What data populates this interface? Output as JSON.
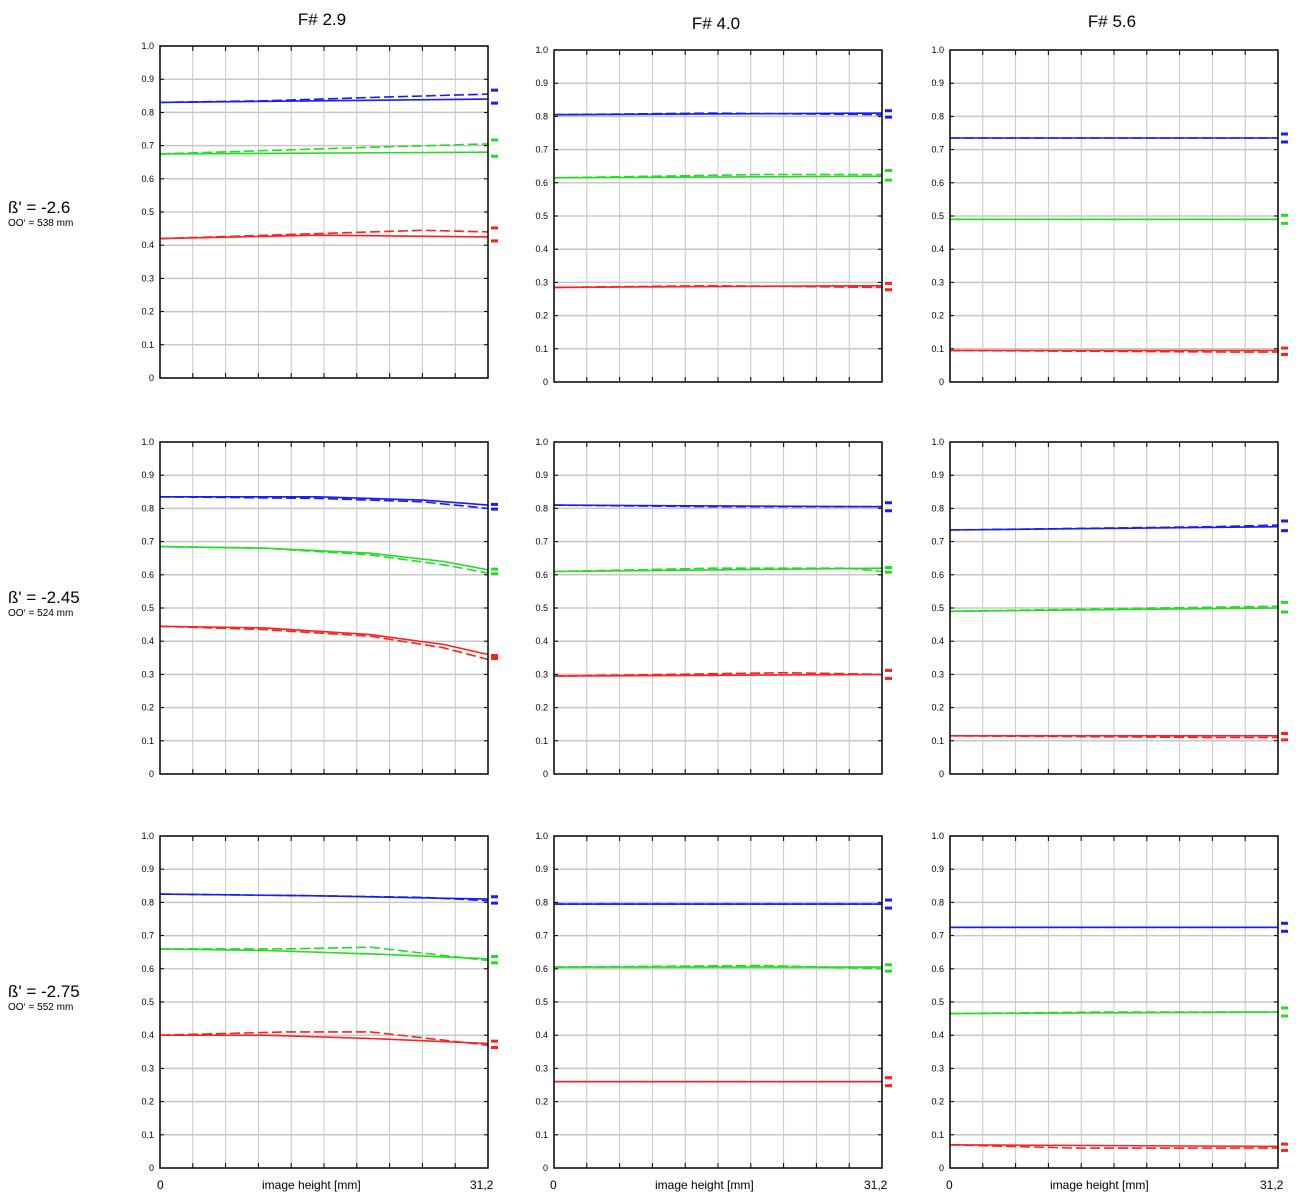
{
  "column_titles": [
    "F# 2.9",
    "F# 4.0",
    "F# 5.6"
  ],
  "rows": [
    {
      "beta": "ß' = -2.6",
      "oo": "OO‘ = 538 mm"
    },
    {
      "beta": "ß' = -2.45",
      "oo": "OO‘ = 524 mm"
    },
    {
      "beta": "ß' = -2.75",
      "oo": "OO‘ =  552 mm"
    }
  ],
  "x_axis": {
    "start_label": "0",
    "title": "image height [mm]",
    "end_label": "31,2"
  },
  "colors": {
    "blue": "#1a1aff",
    "green": "#22dd22",
    "red": "#ff2020",
    "grid": "#c8c8c8"
  },
  "chart_data": [
    {
      "type": "line",
      "panel": "F# 2.9 / ß' = -2.6",
      "x": [
        0,
        31.2
      ],
      "ylim": [
        0,
        1.0
      ],
      "grid": true,
      "yticks": [
        "0",
        "0.1",
        "0.2",
        "0.3",
        "0.4",
        "0.5",
        "0.6",
        "0.7",
        "0.8",
        "0.9",
        "1.0"
      ],
      "series": [
        {
          "color": "blue",
          "style": "solid",
          "x": [
            0,
            31.2
          ],
          "y": [
            0.83,
            0.84
          ]
        },
        {
          "color": "blue",
          "style": "dashed",
          "x": [
            0,
            10,
            20,
            31.2
          ],
          "y": [
            0.83,
            0.835,
            0.845,
            0.855
          ]
        },
        {
          "color": "green",
          "style": "solid",
          "x": [
            0,
            31.2
          ],
          "y": [
            0.675,
            0.68
          ]
        },
        {
          "color": "green",
          "style": "dashed",
          "x": [
            0,
            10,
            20,
            31.2
          ],
          "y": [
            0.675,
            0.685,
            0.695,
            0.705
          ]
        },
        {
          "color": "red",
          "style": "solid",
          "x": [
            0,
            15,
            31.2
          ],
          "y": [
            0.42,
            0.43,
            0.425
          ]
        },
        {
          "color": "red",
          "style": "dashed",
          "x": [
            0,
            15,
            25,
            31.2
          ],
          "y": [
            0.42,
            0.435,
            0.445,
            0.44
          ]
        }
      ]
    },
    {
      "type": "line",
      "panel": "F# 4.0 / ß' = -2.6",
      "x": [
        0,
        31.2
      ],
      "ylim": [
        0,
        1.0
      ],
      "grid": true,
      "yticks": [
        "0",
        "0.1",
        "0.2",
        "0.3",
        "0.4",
        "0.5",
        "0.6",
        "0.7",
        "0.8",
        "0.9",
        "1.0"
      ],
      "series": [
        {
          "color": "blue",
          "style": "solid",
          "x": [
            0,
            31.2
          ],
          "y": [
            0.805,
            0.81
          ]
        },
        {
          "color": "blue",
          "style": "dashed",
          "x": [
            0,
            15,
            31.2
          ],
          "y": [
            0.805,
            0.81,
            0.805
          ]
        },
        {
          "color": "green",
          "style": "solid",
          "x": [
            0,
            31.2
          ],
          "y": [
            0.615,
            0.62
          ]
        },
        {
          "color": "green",
          "style": "dashed",
          "x": [
            0,
            20,
            31.2
          ],
          "y": [
            0.615,
            0.625,
            0.625
          ]
        },
        {
          "color": "red",
          "style": "solid",
          "x": [
            0,
            31.2
          ],
          "y": [
            0.285,
            0.29
          ]
        },
        {
          "color": "red",
          "style": "dashed",
          "x": [
            0,
            15,
            31.2
          ],
          "y": [
            0.285,
            0.29,
            0.285
          ]
        }
      ]
    },
    {
      "type": "line",
      "panel": "F# 5.6 / ß' = -2.6",
      "x": [
        0,
        31.2
      ],
      "ylim": [
        0,
        1.0
      ],
      "grid": true,
      "yticks": [
        "0",
        "0.1",
        "0.2",
        "0.3",
        "0.4",
        "0.5",
        "0.6",
        "0.7",
        "0.8",
        "0.9",
        "1.0"
      ],
      "series": [
        {
          "color": "blue",
          "style": "solid",
          "x": [
            0,
            31.2
          ],
          "y": [
            0.735,
            0.735
          ]
        },
        {
          "color": "blue",
          "style": "dashed",
          "x": [
            0,
            31.2
          ],
          "y": [
            0.735,
            0.735
          ]
        },
        {
          "color": "green",
          "style": "solid",
          "x": [
            0,
            31.2
          ],
          "y": [
            0.49,
            0.49
          ]
        },
        {
          "color": "green",
          "style": "dashed",
          "x": [
            0,
            31.2
          ],
          "y": [
            0.49,
            0.49
          ]
        },
        {
          "color": "red",
          "style": "solid",
          "x": [
            0,
            31.2
          ],
          "y": [
            0.095,
            0.095
          ]
        },
        {
          "color": "red",
          "style": "dashed",
          "x": [
            0,
            28,
            31.2
          ],
          "y": [
            0.095,
            0.09,
            0.09
          ]
        }
      ]
    },
    {
      "type": "line",
      "panel": "F# 2.9 / ß' = -2.45",
      "x": [
        0,
        31.2
      ],
      "ylim": [
        0,
        1.0
      ],
      "grid": true,
      "yticks": [
        "0",
        "0.1",
        "0.2",
        "0.3",
        "0.4",
        "0.5",
        "0.6",
        "0.7",
        "0.8",
        "0.9",
        "1.0"
      ],
      "series": [
        {
          "color": "blue",
          "style": "solid",
          "x": [
            0,
            15,
            25,
            31.2
          ],
          "y": [
            0.835,
            0.835,
            0.825,
            0.81
          ]
        },
        {
          "color": "blue",
          "style": "dashed",
          "x": [
            0,
            15,
            25,
            31.2
          ],
          "y": [
            0.835,
            0.83,
            0.82,
            0.8
          ]
        },
        {
          "color": "green",
          "style": "solid",
          "x": [
            0,
            10,
            20,
            27,
            31.2
          ],
          "y": [
            0.685,
            0.68,
            0.665,
            0.64,
            0.615
          ]
        },
        {
          "color": "green",
          "style": "dashed",
          "x": [
            0,
            10,
            20,
            27,
            31.2
          ],
          "y": [
            0.685,
            0.68,
            0.66,
            0.63,
            0.605
          ]
        },
        {
          "color": "red",
          "style": "solid",
          "x": [
            0,
            10,
            20,
            27,
            31.2
          ],
          "y": [
            0.445,
            0.44,
            0.42,
            0.39,
            0.36
          ]
        },
        {
          "color": "red",
          "style": "dashed",
          "x": [
            0,
            10,
            20,
            27,
            31.2
          ],
          "y": [
            0.445,
            0.435,
            0.415,
            0.38,
            0.345
          ]
        }
      ]
    },
    {
      "type": "line",
      "panel": "F# 4.0 / ß' = -2.45",
      "x": [
        0,
        31.2
      ],
      "ylim": [
        0,
        1.0
      ],
      "grid": true,
      "yticks": [
        "0",
        "0.1",
        "0.2",
        "0.3",
        "0.4",
        "0.5",
        "0.6",
        "0.7",
        "0.8",
        "0.9",
        "1.0"
      ],
      "series": [
        {
          "color": "blue",
          "style": "solid",
          "x": [
            0,
            31.2
          ],
          "y": [
            0.81,
            0.805
          ]
        },
        {
          "color": "blue",
          "style": "dashed",
          "x": [
            0,
            15,
            31.2
          ],
          "y": [
            0.81,
            0.805,
            0.805
          ]
        },
        {
          "color": "green",
          "style": "solid",
          "x": [
            0,
            31.2
          ],
          "y": [
            0.61,
            0.62
          ]
        },
        {
          "color": "green",
          "style": "dashed",
          "x": [
            0,
            15,
            28,
            31.2
          ],
          "y": [
            0.61,
            0.62,
            0.62,
            0.61
          ]
        },
        {
          "color": "red",
          "style": "solid",
          "x": [
            0,
            31.2
          ],
          "y": [
            0.295,
            0.3
          ]
        },
        {
          "color": "red",
          "style": "dashed",
          "x": [
            0,
            22,
            31.2
          ],
          "y": [
            0.295,
            0.305,
            0.3
          ]
        }
      ]
    },
    {
      "type": "line",
      "panel": "F# 5.6 / ß' = -2.45",
      "x": [
        0,
        31.2
      ],
      "ylim": [
        0,
        1.0
      ],
      "grid": true,
      "yticks": [
        "0",
        "0.1",
        "0.2",
        "0.3",
        "0.4",
        "0.5",
        "0.6",
        "0.7",
        "0.8",
        "0.9",
        "1.0"
      ],
      "series": [
        {
          "color": "blue",
          "style": "solid",
          "x": [
            0,
            31.2
          ],
          "y": [
            0.735,
            0.745
          ]
        },
        {
          "color": "blue",
          "style": "dashed",
          "x": [
            0,
            25,
            31.2
          ],
          "y": [
            0.735,
            0.745,
            0.75
          ]
        },
        {
          "color": "green",
          "style": "solid",
          "x": [
            0,
            31.2
          ],
          "y": [
            0.49,
            0.5
          ]
        },
        {
          "color": "green",
          "style": "dashed",
          "x": [
            0,
            20,
            31.2
          ],
          "y": [
            0.49,
            0.5,
            0.505
          ]
        },
        {
          "color": "red",
          "style": "solid",
          "x": [
            0,
            31.2
          ],
          "y": [
            0.115,
            0.115
          ]
        },
        {
          "color": "red",
          "style": "dashed",
          "x": [
            0,
            25,
            31.2
          ],
          "y": [
            0.115,
            0.11,
            0.11
          ]
        }
      ]
    },
    {
      "type": "line",
      "panel": "F# 2.9 / ß' = -2.75",
      "x": [
        0,
        31.2
      ],
      "ylim": [
        0,
        1.0
      ],
      "grid": true,
      "yticks": [
        "0",
        "0.1",
        "0.2",
        "0.3",
        "0.4",
        "0.5",
        "0.6",
        "0.7",
        "0.8",
        "0.9",
        "1.0"
      ],
      "series": [
        {
          "color": "blue",
          "style": "solid",
          "x": [
            0,
            15,
            31.2
          ],
          "y": [
            0.825,
            0.82,
            0.81
          ]
        },
        {
          "color": "blue",
          "style": "dashed",
          "x": [
            0,
            15,
            25,
            31.2
          ],
          "y": [
            0.825,
            0.82,
            0.815,
            0.805
          ]
        },
        {
          "color": "green",
          "style": "solid",
          "x": [
            0,
            10,
            20,
            31.2
          ],
          "y": [
            0.66,
            0.655,
            0.645,
            0.63
          ]
        },
        {
          "color": "green",
          "style": "dashed",
          "x": [
            0,
            12,
            20,
            31.2
          ],
          "y": [
            0.66,
            0.66,
            0.665,
            0.625
          ]
        },
        {
          "color": "red",
          "style": "solid",
          "x": [
            0,
            10,
            20,
            31.2
          ],
          "y": [
            0.4,
            0.4,
            0.39,
            0.375
          ]
        },
        {
          "color": "red",
          "style": "dashed",
          "x": [
            0,
            12,
            20,
            31.2
          ],
          "y": [
            0.4,
            0.41,
            0.41,
            0.37
          ]
        }
      ]
    },
    {
      "type": "line",
      "panel": "F# 4.0 / ß' = -2.75",
      "x": [
        0,
        31.2
      ],
      "ylim": [
        0,
        1.0
      ],
      "grid": true,
      "yticks": [
        "0",
        "0.1",
        "0.2",
        "0.3",
        "0.4",
        "0.5",
        "0.6",
        "0.7",
        "0.8",
        "0.9",
        "1.0"
      ],
      "series": [
        {
          "color": "blue",
          "style": "solid",
          "x": [
            0,
            31.2
          ],
          "y": [
            0.795,
            0.795
          ]
        },
        {
          "color": "blue",
          "style": "dashed",
          "x": [
            0,
            31.2
          ],
          "y": [
            0.795,
            0.795
          ]
        },
        {
          "color": "green",
          "style": "solid",
          "x": [
            0,
            31.2
          ],
          "y": [
            0.605,
            0.605
          ]
        },
        {
          "color": "green",
          "style": "dashed",
          "x": [
            0,
            20,
            31.2
          ],
          "y": [
            0.605,
            0.61,
            0.6
          ]
        },
        {
          "color": "red",
          "style": "solid",
          "x": [
            0,
            31.2
          ],
          "y": [
            0.26,
            0.26
          ]
        },
        {
          "color": "red",
          "style": "dashed",
          "x": [
            0,
            31.2
          ],
          "y": [
            0.26,
            0.26
          ]
        }
      ]
    },
    {
      "type": "line",
      "panel": "F# 5.6 / ß' = -2.75",
      "x": [
        0,
        31.2
      ],
      "ylim": [
        0,
        1.0
      ],
      "grid": true,
      "yticks": [
        "0",
        "0.1",
        "0.2",
        "0.3",
        "0.4",
        "0.5",
        "0.6",
        "0.7",
        "0.8",
        "0.9",
        "1.0"
      ],
      "series": [
        {
          "color": "blue",
          "style": "solid",
          "x": [
            0,
            31.2
          ],
          "y": [
            0.725,
            0.725
          ]
        },
        {
          "color": "blue",
          "style": "dashed",
          "x": [
            0,
            31.2
          ],
          "y": [
            0.725,
            0.725
          ]
        },
        {
          "color": "green",
          "style": "solid",
          "x": [
            0,
            31.2
          ],
          "y": [
            0.465,
            0.47
          ]
        },
        {
          "color": "green",
          "style": "dashed",
          "x": [
            0,
            15,
            31.2
          ],
          "y": [
            0.465,
            0.47,
            0.47
          ]
        },
        {
          "color": "red",
          "style": "solid",
          "x": [
            0,
            31.2
          ],
          "y": [
            0.07,
            0.065
          ]
        },
        {
          "color": "red",
          "style": "dashed",
          "x": [
            0,
            12,
            31.2
          ],
          "y": [
            0.07,
            0.06,
            0.06
          ]
        }
      ]
    }
  ]
}
